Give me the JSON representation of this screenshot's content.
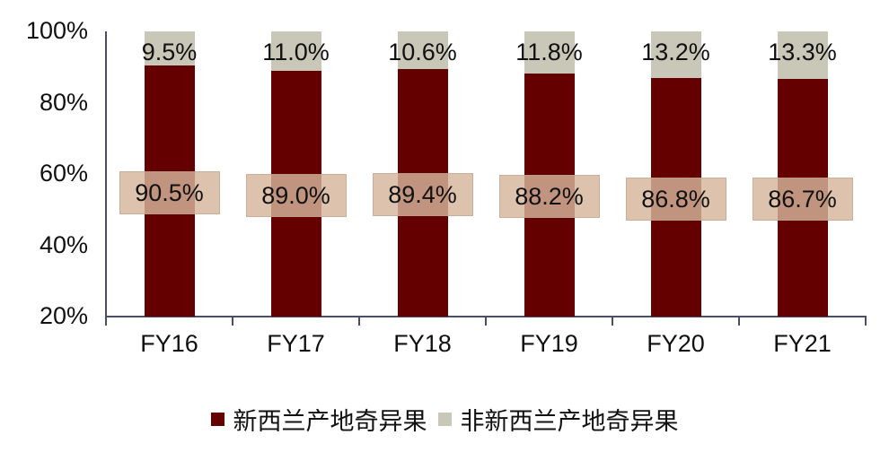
{
  "chart_data": {
    "type": "bar",
    "stacked": true,
    "title": "",
    "xlabel": "",
    "ylabel": "",
    "ylim": [
      20,
      100
    ],
    "yticks": [
      "100%",
      "80%",
      "60%",
      "40%",
      "20%"
    ],
    "categories": [
      "FY16",
      "FY17",
      "FY18",
      "FY19",
      "FY20",
      "FY21"
    ],
    "series": [
      {
        "name": "新西兰产地奇异果",
        "color": "#650000",
        "values": [
          90.5,
          89.0,
          89.4,
          88.2,
          86.8,
          86.7
        ],
        "labels": [
          "90.5%",
          "89.0%",
          "89.4%",
          "88.2%",
          "86.8%",
          "86.7%"
        ]
      },
      {
        "name": "非新西兰产地奇异果",
        "color": "#c9c7b8",
        "values": [
          9.5,
          11.0,
          10.6,
          11.8,
          13.2,
          13.3
        ],
        "labels": [
          "9.5%",
          "11.0%",
          "10.6%",
          "11.8%",
          "13.2%",
          "13.3%"
        ]
      }
    ],
    "legend_position": "bottom",
    "grid": false
  },
  "legend": {
    "items": [
      {
        "label": "新西兰产地奇异果",
        "color": "#650000"
      },
      {
        "label": "非新西兰产地奇异果",
        "color": "#c9c7b8"
      }
    ]
  }
}
